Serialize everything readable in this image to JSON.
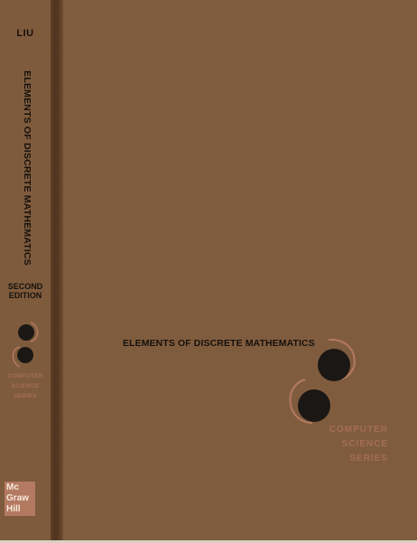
{
  "spine": {
    "author": "LIU",
    "title": "ELEMENTS OF DISCRETE MATHEMATICS",
    "edition": [
      "SECOND",
      "EDITION"
    ],
    "series": [
      "COMPUTER",
      "SCIENCE",
      "SERIES"
    ],
    "logo_icon": "computer-science-series-logo-icon"
  },
  "cover": {
    "title": "ELEMENTS OF DISCRETE MATHEMATICS",
    "series": [
      "COMPUTER",
      "SCIENCE",
      "SERIES"
    ],
    "logo_icon": "computer-science-series-logo-icon"
  },
  "publisher": {
    "lines": [
      "Mc",
      "Graw",
      "Hill"
    ]
  },
  "colors": {
    "cover_brown": "#805c3e",
    "spine_shadow": "#4f341f",
    "title_ink": "#16110c",
    "series_tint": "#a56e52",
    "publisher_tint": "#b47a61"
  }
}
